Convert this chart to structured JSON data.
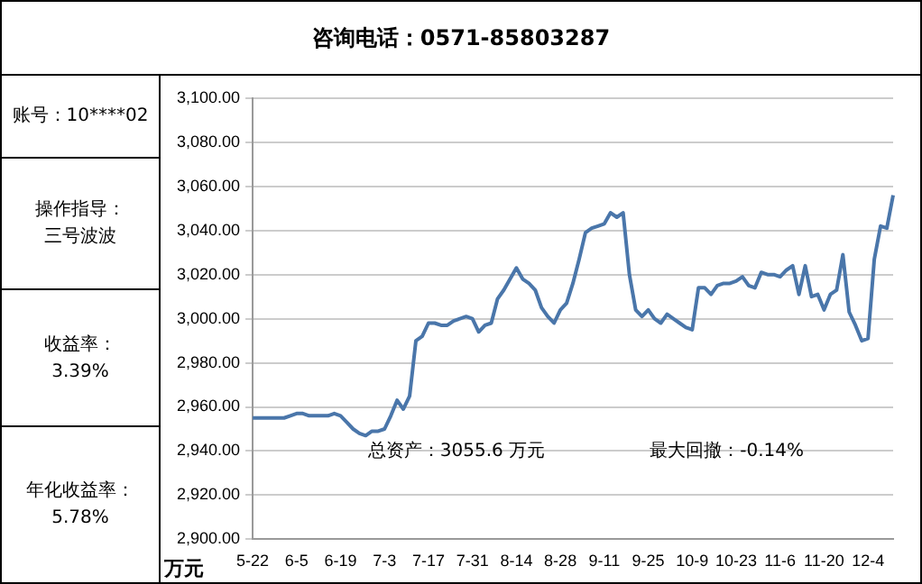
{
  "chart_data": {
    "type": "line",
    "title": "咨询电话：0571-85803287",
    "ylabel": "万元",
    "annotations": [
      "账号：10****02",
      "操作指导：",
      "三号波波",
      "收益率：",
      "3.39%",
      "年化收益率：",
      "5.78%",
      "总资产：3055.6 万元",
      "最大回撤：-0.14%"
    ],
    "categories": [
      "5-22",
      null,
      null,
      null,
      null,
      null,
      null,
      "6-5",
      null,
      null,
      null,
      null,
      null,
      null,
      "6-19",
      null,
      null,
      null,
      null,
      null,
      null,
      "7-3",
      null,
      null,
      null,
      null,
      null,
      null,
      "7-17",
      null,
      null,
      null,
      null,
      null,
      null,
      "7-31",
      null,
      null,
      null,
      null,
      null,
      null,
      "8-14",
      null,
      null,
      null,
      null,
      null,
      null,
      "8-28",
      null,
      null,
      null,
      null,
      null,
      null,
      "9-11",
      null,
      null,
      null,
      null,
      null,
      null,
      "9-25",
      null,
      null,
      null,
      null,
      null,
      null,
      "10-9",
      null,
      null,
      null,
      null,
      null,
      null,
      "10-23",
      null,
      null,
      null,
      null,
      null,
      null,
      "11-6",
      null,
      null,
      null,
      null,
      null,
      null,
      "11-20",
      null,
      null,
      null,
      null,
      null,
      null,
      "12-4",
      null,
      null,
      null,
      null
    ],
    "series": [
      {
        "color": "#4a76aa",
        "values": [
          2955,
          2955,
          2955,
          2955,
          2955,
          2955,
          2956,
          2957,
          2957,
          2956,
          2956,
          2956,
          2956,
          2957,
          2956,
          2953,
          2950,
          2948,
          2947,
          2949,
          2949,
          2950,
          2956,
          2963,
          2959,
          2965,
          2990,
          2992,
          2998,
          2998,
          2997,
          2997,
          2999,
          3000,
          3001,
          3000,
          2994,
          2997,
          2998,
          3009,
          3013,
          3018,
          3023,
          3018,
          3016,
          3013,
          3005,
          3001,
          2998,
          3004,
          3007,
          3016,
          3027,
          3039,
          3041,
          3042,
          3043,
          3048,
          3046,
          3048,
          3020,
          3004,
          3001,
          3004,
          3000,
          2998,
          3002,
          3000,
          2998,
          2996,
          2995,
          3014,
          3014,
          3011,
          3015,
          3016,
          3016,
          3017,
          3019,
          3015,
          3014,
          3021,
          3020,
          3020,
          3019,
          3022,
          3024,
          3011,
          3024,
          3010,
          3011,
          3004,
          3011,
          3013,
          3029,
          3003,
          2997,
          2990,
          2991,
          3027,
          3042,
          3041,
          3056
        ]
      }
    ],
    "ylim": [
      2900,
      3100
    ],
    "yticks": [
      {
        "value": 2900,
        "label": "2,900.00"
      },
      {
        "value": 2920,
        "label": "2,920.00"
      },
      {
        "value": 2940,
        "label": "2,940.00"
      },
      {
        "value": 2960,
        "label": "2,960.00"
      },
      {
        "value": 2980,
        "label": "2,980.00"
      },
      {
        "value": 3000,
        "label": "3,000.00"
      },
      {
        "value": 3020,
        "label": "3,020.00"
      },
      {
        "value": 3040,
        "label": "3,040.00"
      },
      {
        "value": 3060,
        "label": "3,060.00"
      },
      {
        "value": 3080,
        "label": "3,080.00"
      },
      {
        "value": 3100,
        "label": "3,100.00"
      }
    ],
    "grid": "y",
    "legend": false,
    "marker": "none",
    "line_style": "solid"
  }
}
